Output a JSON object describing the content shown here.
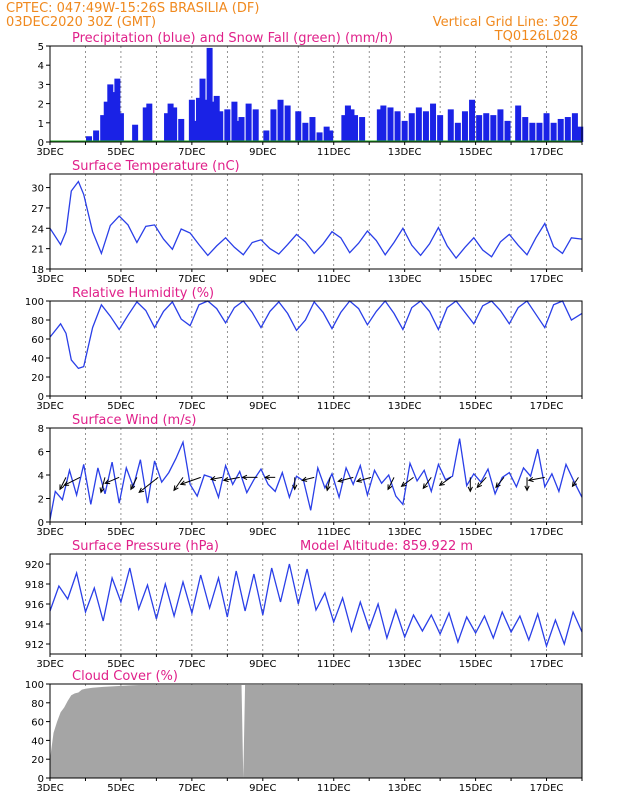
{
  "header": {
    "left_line1": "CPTEC:   047:49W-15:26S   BRASILIA (DF)",
    "left_line2": "03DEC2020 30Z (GMT)",
    "right_line1": "Vertical Grid Line: 30Z",
    "right_line2": "TQ0126L028"
  },
  "colors": {
    "header": "#f0891e",
    "titles": "#e0208a",
    "precipitation": "#1a22e6",
    "snow": "#1faa1f",
    "lines": "#2a3fe8",
    "cloud": "#a5a5a5"
  },
  "x_labels": [
    "3DEC",
    "5DEC",
    "7DEC",
    "9DEC",
    "11DEC",
    "13DEC",
    "15DEC",
    "17DEC"
  ],
  "chart_data": [
    {
      "type": "bar",
      "title": "Precipitation (blue) and Snow Fall (green) (mm/h)",
      "x_range_days": [
        3,
        18
      ],
      "ylim": [
        0,
        5
      ],
      "yticks": [
        "0",
        "1",
        "2",
        "3",
        "4",
        "5"
      ],
      "series": [
        {
          "name": "Precipitation",
          "x": [
            4.1,
            4.3,
            4.5,
            4.6,
            4.7,
            4.8,
            4.9,
            5.0,
            5.4,
            5.7,
            5.8,
            6.3,
            6.4,
            6.5,
            6.7,
            7.0,
            7.1,
            7.2,
            7.3,
            7.4,
            7.5,
            7.6,
            7.7,
            7.8,
            8.0,
            8.2,
            8.3,
            8.4,
            8.6,
            8.8,
            9.1,
            9.3,
            9.5,
            9.7,
            10.0,
            10.2,
            10.4,
            10.6,
            10.8,
            10.9,
            11.3,
            11.4,
            11.5,
            11.6,
            11.8,
            12.3,
            12.4,
            12.6,
            12.8,
            13.0,
            13.2,
            13.4,
            13.6,
            13.8,
            14.0,
            14.3,
            14.5,
            14.7,
            14.9,
            15.1,
            15.3,
            15.5,
            15.7,
            15.9,
            16.2,
            16.4,
            16.6,
            16.8,
            17.0,
            17.2,
            17.4,
            17.6,
            17.8,
            17.95
          ],
          "values": [
            0.3,
            0.6,
            1.4,
            2.1,
            3.0,
            2.6,
            3.3,
            1.5,
            0.9,
            1.8,
            2.0,
            1.5,
            2.0,
            1.8,
            1.2,
            2.2,
            1.1,
            2.3,
            3.3,
            2.2,
            4.9,
            2.1,
            2.4,
            1.6,
            1.7,
            2.1,
            1.1,
            1.3,
            2.0,
            1.7,
            0.6,
            1.7,
            2.2,
            1.9,
            1.6,
            1.0,
            1.3,
            0.5,
            0.8,
            0.6,
            1.4,
            1.9,
            1.7,
            1.4,
            1.3,
            1.7,
            1.9,
            1.8,
            1.6,
            1.1,
            1.5,
            1.8,
            1.6,
            2.0,
            1.4,
            1.7,
            1.0,
            1.6,
            2.2,
            1.4,
            1.5,
            1.4,
            1.7,
            1.1,
            1.9,
            1.3,
            1.0,
            1.0,
            1.5,
            1.0,
            1.2,
            1.3,
            1.5,
            0.8
          ]
        },
        {
          "name": "Snow Fall",
          "values_note_free": [],
          "values": [
            0
          ]
        }
      ]
    },
    {
      "type": "line",
      "title": "Surface Temperature (nC)",
      "x_range_days": [
        3,
        18
      ],
      "ylim": [
        18,
        32
      ],
      "yticks": [
        "18",
        "21",
        "24",
        "27",
        "30"
      ],
      "series": [
        {
          "name": "Surface Temperature",
          "x": [
            3.0,
            3.3,
            3.45,
            3.6,
            3.8,
            3.95,
            4.2,
            4.45,
            4.7,
            4.95,
            5.2,
            5.45,
            5.7,
            5.95,
            6.2,
            6.45,
            6.7,
            6.95,
            7.2,
            7.45,
            7.7,
            7.95,
            8.2,
            8.45,
            8.7,
            8.95,
            9.2,
            9.45,
            9.7,
            9.95,
            10.2,
            10.45,
            10.7,
            10.95,
            11.2,
            11.45,
            11.7,
            11.95,
            12.2,
            12.45,
            12.7,
            12.95,
            13.2,
            13.45,
            13.7,
            13.95,
            14.2,
            14.45,
            14.7,
            14.95,
            15.2,
            15.45,
            15.7,
            15.95,
            16.2,
            16.45,
            16.7,
            16.95,
            17.2,
            17.45,
            17.7,
            18.0
          ],
          "values": [
            24.0,
            21.6,
            23.5,
            29.5,
            30.9,
            29.0,
            23.5,
            20.3,
            24.4,
            25.8,
            24.5,
            21.9,
            24.3,
            24.5,
            22.4,
            20.9,
            23.9,
            23.3,
            21.6,
            20.0,
            21.4,
            22.6,
            21.2,
            20.1,
            21.9,
            22.3,
            21.0,
            20.2,
            21.6,
            23.1,
            22.0,
            20.3,
            21.7,
            23.5,
            22.6,
            20.4,
            21.8,
            23.6,
            22.2,
            20.1,
            21.9,
            24.0,
            21.5,
            20.0,
            21.7,
            24.1,
            21.4,
            19.6,
            21.2,
            22.6,
            20.8,
            19.8,
            22.0,
            23.1,
            21.5,
            20.1,
            22.6,
            24.7,
            21.3,
            20.3,
            22.6,
            22.4
          ]
        }
      ]
    },
    {
      "type": "line",
      "title": "Relative Humidity (%)",
      "x_range_days": [
        3,
        18
      ],
      "ylim": [
        0,
        100
      ],
      "yticks": [
        "0",
        "20",
        "40",
        "60",
        "80",
        "100"
      ],
      "series": [
        {
          "name": "Relative Humidity",
          "x": [
            3.0,
            3.3,
            3.45,
            3.6,
            3.8,
            3.95,
            4.2,
            4.45,
            4.7,
            4.95,
            5.2,
            5.45,
            5.7,
            5.95,
            6.2,
            6.45,
            6.7,
            6.95,
            7.2,
            7.45,
            7.7,
            7.95,
            8.2,
            8.45,
            8.7,
            8.95,
            9.2,
            9.45,
            9.7,
            9.95,
            10.2,
            10.45,
            10.7,
            10.95,
            11.2,
            11.45,
            11.7,
            11.95,
            12.2,
            12.45,
            12.7,
            12.95,
            13.2,
            13.45,
            13.7,
            13.95,
            14.2,
            14.45,
            14.7,
            14.95,
            15.2,
            15.45,
            15.7,
            15.95,
            16.2,
            16.45,
            16.7,
            16.95,
            17.2,
            17.45,
            17.7,
            18.0
          ],
          "values": [
            62,
            76,
            66,
            38,
            29,
            31,
            72,
            96,
            84,
            70,
            85,
            99,
            90,
            72,
            89,
            99,
            81,
            74,
            96,
            100,
            92,
            77,
            93,
            100,
            88,
            72,
            89,
            99,
            87,
            69,
            80,
            99,
            88,
            71,
            88,
            100,
            92,
            75,
            89,
            100,
            87,
            70,
            93,
            100,
            89,
            70,
            93,
            100,
            88,
            76,
            95,
            100,
            90,
            76,
            93,
            100,
            86,
            72,
            96,
            100,
            80,
            87
          ]
        }
      ]
    },
    {
      "type": "line",
      "title": "Surface Wind (m/s)",
      "x_range_days": [
        3,
        18
      ],
      "ylim": [
        0,
        8
      ],
      "yticks": [
        "0",
        "2",
        "4",
        "6",
        "8"
      ],
      "series": [
        {
          "name": "Surface Wind",
          "x": [
            3.0,
            3.15,
            3.35,
            3.55,
            3.75,
            3.95,
            4.15,
            4.35,
            4.55,
            4.75,
            4.95,
            5.15,
            5.35,
            5.55,
            5.75,
            5.95,
            6.15,
            6.35,
            6.55,
            6.75,
            6.95,
            7.15,
            7.35,
            7.55,
            7.75,
            7.95,
            8.15,
            8.35,
            8.55,
            8.75,
            8.95,
            9.15,
            9.35,
            9.55,
            9.75,
            9.95,
            10.15,
            10.35,
            10.55,
            10.75,
            10.95,
            11.15,
            11.35,
            11.55,
            11.75,
            11.95,
            12.15,
            12.35,
            12.55,
            12.75,
            12.95,
            13.15,
            13.35,
            13.55,
            13.75,
            13.95,
            14.15,
            14.35,
            14.55,
            14.75,
            14.95,
            15.15,
            15.35,
            15.55,
            15.75,
            15.95,
            16.15,
            16.35,
            16.55,
            16.75,
            16.95,
            17.15,
            17.35,
            17.55,
            17.75,
            18.0
          ],
          "values": [
            0.2,
            2.6,
            1.9,
            4.4,
            2.3,
            4.9,
            1.5,
            4.6,
            2.4,
            5.1,
            1.6,
            4.6,
            3.0,
            5.3,
            1.6,
            5.2,
            3.4,
            4.2,
            5.4,
            6.8,
            3.2,
            2.2,
            4.0,
            3.8,
            2.1,
            4.8,
            3.2,
            4.3,
            2.5,
            3.6,
            4.5,
            3.2,
            2.6,
            4.2,
            2.1,
            3.9,
            3.5,
            1.0,
            4.6,
            2.9,
            4.1,
            2.1,
            4.6,
            3.2,
            4.8,
            2.3,
            4.4,
            3.3,
            4.0,
            2.2,
            1.5,
            5.0,
            3.5,
            4.4,
            2.6,
            4.9,
            3.6,
            3.9,
            7.1,
            3.1,
            4.1,
            3.4,
            4.5,
            2.4,
            3.8,
            4.2,
            3.0,
            4.6,
            3.9,
            6.2,
            3.0,
            4.1,
            2.6,
            4.9,
            3.6,
            2.1
          ]
        }
      ],
      "direction_vectors": [
        {
          "x": 3.45,
          "u": -0.6,
          "v": -1.2
        },
        {
          "x": 3.85,
          "u": -1.6,
          "v": -0.8
        },
        {
          "x": 4.55,
          "u": -0.4,
          "v": -1.5
        },
        {
          "x": 4.95,
          "u": -1.4,
          "v": -0.6
        },
        {
          "x": 5.45,
          "u": -0.6,
          "v": -1.2
        },
        {
          "x": 6.05,
          "u": -1.9,
          "v": -1.5
        },
        {
          "x": 6.75,
          "u": -0.9,
          "v": -1.3
        },
        {
          "x": 7.25,
          "u": -2.0,
          "v": -0.7
        },
        {
          "x": 7.85,
          "u": -1.1,
          "v": -0.2
        },
        {
          "x": 8.35,
          "u": -1.6,
          "v": -0.3
        },
        {
          "x": 8.85,
          "u": -1.5,
          "v": 0.0
        },
        {
          "x": 9.35,
          "u": -1.0,
          "v": 0.0
        },
        {
          "x": 9.9,
          "u": 0.0,
          "v": -1.2
        },
        {
          "x": 10.45,
          "u": -1.2,
          "v": -0.3
        },
        {
          "x": 10.9,
          "u": -0.3,
          "v": -1.3
        },
        {
          "x": 11.55,
          "u": -1.5,
          "v": -0.4
        },
        {
          "x": 12.05,
          "u": -1.4,
          "v": -0.4
        },
        {
          "x": 12.7,
          "u": -0.6,
          "v": -1.2
        },
        {
          "x": 13.25,
          "u": -1.2,
          "v": -0.9
        },
        {
          "x": 13.75,
          "u": -0.8,
          "v": -1.1
        },
        {
          "x": 14.3,
          "u": -1.1,
          "v": -0.8
        },
        {
          "x": 14.85,
          "u": 0.0,
          "v": -1.4
        },
        {
          "x": 15.3,
          "u": -0.9,
          "v": -1.0
        },
        {
          "x": 15.8,
          "u": -0.8,
          "v": -1.0
        },
        {
          "x": 16.45,
          "u": 0.0,
          "v": -1.3
        },
        {
          "x": 16.95,
          "u": -1.6,
          "v": -0.3
        },
        {
          "x": 17.9,
          "u": -0.6,
          "v": -0.9
        }
      ]
    },
    {
      "type": "line",
      "title": "Surface Pressure (hPa)",
      "annotation": "Model Altitude: 859.922  m",
      "x_range_days": [
        3,
        18
      ],
      "ylim": [
        911,
        921
      ],
      "yticks": [
        "912",
        "914",
        "916",
        "918",
        "920"
      ],
      "series": [
        {
          "name": "Surface Pressure",
          "x": [
            3.0,
            3.25,
            3.5,
            3.75,
            4.0,
            4.25,
            4.5,
            4.75,
            5.0,
            5.25,
            5.5,
            5.75,
            6.0,
            6.25,
            6.5,
            6.75,
            7.0,
            7.25,
            7.5,
            7.75,
            8.0,
            8.25,
            8.5,
            8.75,
            9.0,
            9.25,
            9.5,
            9.75,
            10.0,
            10.25,
            10.5,
            10.75,
            11.0,
            11.25,
            11.5,
            11.75,
            12.0,
            12.25,
            12.5,
            12.75,
            13.0,
            13.25,
            13.5,
            13.75,
            14.0,
            14.25,
            14.5,
            14.75,
            15.0,
            15.25,
            15.5,
            15.75,
            16.0,
            16.25,
            16.5,
            16.75,
            17.0,
            17.25,
            17.5,
            17.75,
            18.0
          ],
          "values": [
            915.3,
            917.8,
            916.5,
            919.1,
            915.2,
            917.6,
            914.3,
            918.6,
            916.2,
            919.6,
            915.5,
            917.9,
            914.5,
            918.0,
            914.8,
            918.2,
            915.1,
            918.9,
            915.6,
            918.6,
            914.7,
            919.3,
            915.3,
            919.0,
            914.9,
            919.6,
            916.2,
            920.0,
            916.0,
            919.5,
            915.4,
            917.1,
            914.2,
            916.6,
            913.3,
            916.2,
            913.5,
            916.0,
            912.6,
            915.4,
            912.7,
            914.9,
            913.3,
            914.9,
            913.0,
            915.1,
            912.2,
            914.7,
            913.1,
            914.8,
            912.6,
            915.2,
            913.2,
            914.8,
            912.4,
            915.0,
            911.8,
            914.4,
            912.0,
            915.2,
            913.2
          ]
        }
      ]
    },
    {
      "type": "bar",
      "title": "Cloud Cover (%)",
      "x_range_days": [
        3,
        18
      ],
      "ylim": [
        0,
        100
      ],
      "yticks": [
        "0",
        "20",
        "40",
        "60",
        "80",
        "100"
      ],
      "series": [
        {
          "name": "Cloud Cover",
          "x": [
            3.0,
            3.1,
            3.2,
            3.3,
            3.4,
            3.5,
            3.6,
            3.7,
            3.8,
            3.9,
            4.0,
            4.2,
            4.5,
            5.0,
            5.5,
            6.0,
            6.5,
            7.0,
            7.5,
            8.0,
            8.4,
            8.45,
            8.5,
            9.0,
            10.0,
            11.0,
            12.0,
            13.0,
            14.0,
            15.0,
            16.0,
            17.0,
            18.0
          ],
          "values": [
            20,
            48,
            60,
            70,
            75,
            82,
            88,
            90,
            91,
            94,
            95,
            96,
            97,
            98,
            99,
            99,
            99,
            99,
            99,
            99,
            99,
            0,
            99,
            99,
            99,
            99,
            99,
            99,
            99,
            99,
            99,
            99,
            99
          ]
        }
      ]
    }
  ]
}
